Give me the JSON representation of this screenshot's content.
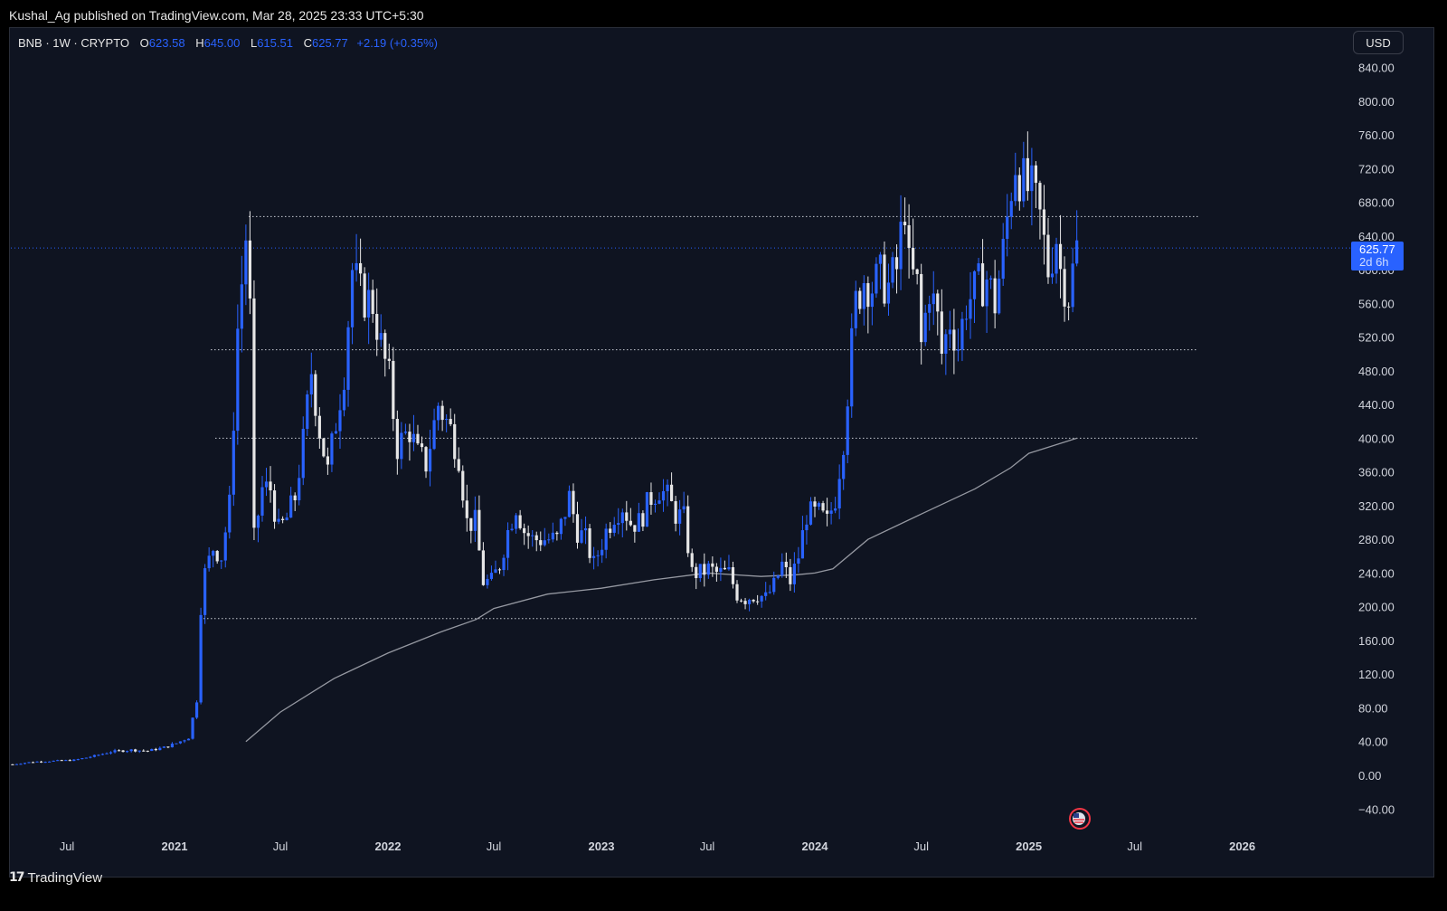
{
  "header": {
    "published": "Kushal_Ag published on TradingView.com, Mar 28, 2025 23:33 UTC+5:30"
  },
  "legend": {
    "symbol": "BNB · 1W · CRYPTO",
    "open_label": "O",
    "open": "623.58",
    "high_label": "H",
    "high": "645.00",
    "low_label": "L",
    "low": "615.51",
    "close_label": "C",
    "close": "625.77",
    "change": "+2.19 (+0.35%)"
  },
  "currency_button": "USD",
  "price_tag": {
    "value": "625.77",
    "countdown": "2d 6h"
  },
  "branding": {
    "logo_mark": "17",
    "name": "TradingView"
  },
  "colors": {
    "background": "#0f1421",
    "up": "#2962ff",
    "down": "#e6e6e6",
    "ma": "#9598a1",
    "tag": "#2962ff"
  },
  "chart_data": {
    "type": "candlestick",
    "timeframe": "1W",
    "ylim": [
      -60,
      870
    ],
    "y_ticks": [
      "840.00",
      "800.00",
      "760.00",
      "720.00",
      "680.00",
      "640.00",
      "600.00",
      "560.00",
      "520.00",
      "480.00",
      "440.00",
      "400.00",
      "360.00",
      "320.00",
      "280.00",
      "240.00",
      "200.00",
      "160.00",
      "120.00",
      "80.00",
      "40.00",
      "0.00",
      "−40.00"
    ],
    "x_ticks": [
      {
        "label": "Jul",
        "date": "2020-07-01",
        "bold": false
      },
      {
        "label": "2021",
        "date": "2021-01-01",
        "bold": true
      },
      {
        "label": "Jul",
        "date": "2021-07-01",
        "bold": false
      },
      {
        "label": "2022",
        "date": "2022-01-01",
        "bold": true
      },
      {
        "label": "Jul",
        "date": "2022-07-01",
        "bold": false
      },
      {
        "label": "2023",
        "date": "2023-01-01",
        "bold": true
      },
      {
        "label": "Jul",
        "date": "2023-07-01",
        "bold": false
      },
      {
        "label": "2024",
        "date": "2024-01-01",
        "bold": true
      },
      {
        "label": "Jul",
        "date": "2024-07-01",
        "bold": false
      },
      {
        "label": "2025",
        "date": "2025-01-01",
        "bold": true
      },
      {
        "label": "Jul",
        "date": "2025-07-01",
        "bold": false
      },
      {
        "label": "2026",
        "date": "2026-01-01",
        "bold": true
      }
    ],
    "close_series": [
      [
        "2020-03-30",
        13
      ],
      [
        "2020-05-04",
        16
      ],
      [
        "2020-06-08",
        17
      ],
      [
        "2020-07-13",
        18
      ],
      [
        "2020-08-17",
        23
      ],
      [
        "2020-09-14",
        28
      ],
      [
        "2020-10-19",
        30
      ],
      [
        "2020-11-16",
        29
      ],
      [
        "2020-12-14",
        33
      ],
      [
        "2021-01-04",
        38
      ],
      [
        "2021-01-25",
        45
      ],
      [
        "2021-02-08",
        90
      ],
      [
        "2021-02-15",
        200
      ],
      [
        "2021-02-22",
        240
      ],
      [
        "2021-03-08",
        270
      ],
      [
        "2021-03-22",
        260
      ],
      [
        "2021-04-05",
        320
      ],
      [
        "2021-04-19",
        530
      ],
      [
        "2021-05-03",
        640
      ],
      [
        "2021-05-10",
        550
      ],
      [
        "2021-05-17",
        280
      ],
      [
        "2021-05-31",
        340
      ],
      [
        "2021-06-14",
        340
      ],
      [
        "2021-06-28",
        290
      ],
      [
        "2021-07-12",
        305
      ],
      [
        "2021-07-26",
        330
      ],
      [
        "2021-08-09",
        395
      ],
      [
        "2021-08-23",
        480
      ],
      [
        "2021-09-06",
        410
      ],
      [
        "2021-09-20",
        360
      ],
      [
        "2021-10-04",
        420
      ],
      [
        "2021-10-18",
        480
      ],
      [
        "2021-11-01",
        600
      ],
      [
        "2021-11-15",
        570
      ],
      [
        "2021-12-06",
        560
      ],
      [
        "2021-12-20",
        510
      ],
      [
        "2022-01-03",
        470
      ],
      [
        "2022-01-17",
        390
      ],
      [
        "2022-02-07",
        410
      ],
      [
        "2022-02-21",
        380
      ],
      [
        "2022-03-07",
        370
      ],
      [
        "2022-03-28",
        440
      ],
      [
        "2022-04-18",
        410
      ],
      [
        "2022-05-02",
        380
      ],
      [
        "2022-05-16",
        300
      ],
      [
        "2022-05-30",
        300
      ],
      [
        "2022-06-13",
        230
      ],
      [
        "2022-06-27",
        230
      ],
      [
        "2022-07-11",
        250
      ],
      [
        "2022-07-25",
        290
      ],
      [
        "2022-08-08",
        320
      ],
      [
        "2022-08-22",
        290
      ],
      [
        "2022-09-05",
        280
      ],
      [
        "2022-09-19",
        280
      ],
      [
        "2022-10-03",
        280
      ],
      [
        "2022-10-17",
        280
      ],
      [
        "2022-11-07",
        330
      ],
      [
        "2022-11-21",
        290
      ],
      [
        "2022-12-05",
        280
      ],
      [
        "2022-12-19",
        250
      ],
      [
        "2023-01-09",
        290
      ],
      [
        "2023-01-23",
        310
      ],
      [
        "2023-02-06",
        320
      ],
      [
        "2023-02-20",
        300
      ],
      [
        "2023-03-06",
        300
      ],
      [
        "2023-03-27",
        330
      ],
      [
        "2023-04-10",
        340
      ],
      [
        "2023-04-24",
        330
      ],
      [
        "2023-05-08",
        310
      ],
      [
        "2023-05-22",
        305
      ],
      [
        "2023-06-05",
        240
      ],
      [
        "2023-06-19",
        240
      ],
      [
        "2023-07-03",
        245
      ],
      [
        "2023-07-17",
        240
      ],
      [
        "2023-08-07",
        240
      ],
      [
        "2023-08-21",
        215
      ],
      [
        "2023-09-04",
        210
      ],
      [
        "2023-09-25",
        215
      ],
      [
        "2023-10-09",
        210
      ],
      [
        "2023-10-23",
        225
      ],
      [
        "2023-11-06",
        250
      ],
      [
        "2023-11-20",
        230
      ],
      [
        "2023-12-04",
        260
      ],
      [
        "2023-12-18",
        310
      ],
      [
        "2024-01-08",
        310
      ],
      [
        "2024-01-22",
        300
      ],
      [
        "2024-02-05",
        330
      ],
      [
        "2024-02-19",
        400
      ],
      [
        "2024-03-04",
        510
      ],
      [
        "2024-03-11",
        560
      ],
      [
        "2024-03-25",
        590
      ],
      [
        "2024-04-08",
        580
      ],
      [
        "2024-04-22",
        590
      ],
      [
        "2024-05-06",
        580
      ],
      [
        "2024-05-20",
        600
      ],
      [
        "2024-06-03",
        680
      ],
      [
        "2024-06-10",
        600
      ],
      [
        "2024-06-24",
        580
      ],
      [
        "2024-07-01",
        510
      ],
      [
        "2024-07-15",
        580
      ],
      [
        "2024-07-29",
        540
      ],
      [
        "2024-08-05",
        500
      ],
      [
        "2024-08-19",
        540
      ],
      [
        "2024-09-02",
        510
      ],
      [
        "2024-09-16",
        560
      ],
      [
        "2024-10-07",
        580
      ],
      [
        "2024-10-21",
        590
      ],
      [
        "2024-11-04",
        560
      ],
      [
        "2024-11-18",
        620
      ],
      [
        "2024-12-02",
        700
      ],
      [
        "2024-12-09",
        730
      ],
      [
        "2024-12-23",
        700
      ],
      [
        "2025-01-06",
        690
      ],
      [
        "2025-01-20",
        660
      ],
      [
        "2025-02-03",
        600
      ],
      [
        "2025-02-17",
        640
      ],
      [
        "2025-02-24",
        600
      ],
      [
        "2025-03-10",
        570
      ],
      [
        "2025-03-24",
        625.77
      ]
    ],
    "moving_average_series": [
      [
        "2021-05-03",
        40
      ],
      [
        "2021-07-01",
        75
      ],
      [
        "2021-10-01",
        115
      ],
      [
        "2022-01-01",
        145
      ],
      [
        "2022-04-01",
        170
      ],
      [
        "2022-06-01",
        185
      ],
      [
        "2022-07-01",
        198
      ],
      [
        "2022-10-01",
        215
      ],
      [
        "2023-01-01",
        222
      ],
      [
        "2023-04-01",
        232
      ],
      [
        "2023-07-01",
        240
      ],
      [
        "2023-10-01",
        236
      ],
      [
        "2023-12-01",
        238
      ],
      [
        "2024-01-01",
        240
      ],
      [
        "2024-02-01",
        245
      ],
      [
        "2024-04-01",
        280
      ],
      [
        "2024-07-01",
        310
      ],
      [
        "2024-10-01",
        340
      ],
      [
        "2024-12-01",
        365
      ],
      [
        "2025-01-01",
        382
      ],
      [
        "2025-03-24",
        400
      ]
    ],
    "horizontal_levels": [
      663,
      505,
      400,
      186
    ]
  }
}
